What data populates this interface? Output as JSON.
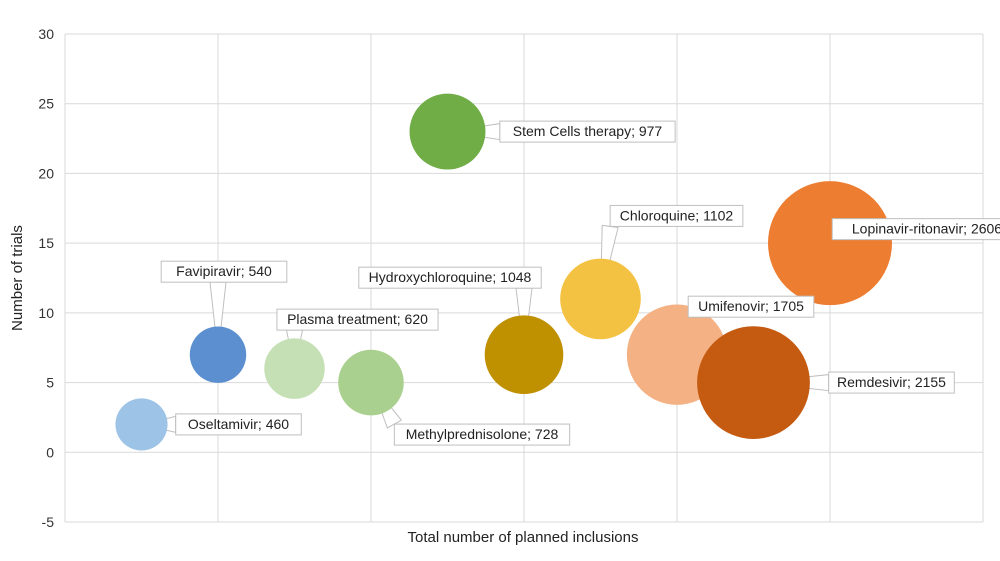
{
  "chart_data": {
    "type": "bubble",
    "xlabel": "Total number of planned inclusions",
    "ylabel": "Number of trials",
    "ylim": [
      -5,
      30
    ],
    "yticks": [
      -5,
      0,
      5,
      10,
      15,
      20,
      25,
      30
    ],
    "xlim": [
      0,
      6
    ],
    "grid": true,
    "points": [
      {
        "label": "Oseltamivir; 460",
        "x": 0.5,
        "y": 2,
        "size": 460,
        "color": "#9dc3e6"
      },
      {
        "label": "Favipiravir; 540",
        "x": 1.0,
        "y": 7,
        "size": 540,
        "color": "#5b8fcf"
      },
      {
        "label": "Plasma treatment; 620",
        "x": 1.5,
        "y": 6,
        "size": 620,
        "color": "#c5e0b4"
      },
      {
        "label": "Methylprednisolone; 728",
        "x": 2.0,
        "y": 5,
        "size": 728,
        "color": "#a9d08e"
      },
      {
        "label": "Stem Cells therapy; 977",
        "x": 2.5,
        "y": 23,
        "size": 977,
        "color": "#70ad47"
      },
      {
        "label": "Hydroxychloroquine; 1048",
        "x": 3.0,
        "y": 7,
        "size": 1048,
        "color": "#bf9000"
      },
      {
        "label": "Chloroquine; 1102",
        "x": 3.5,
        "y": 11,
        "size": 1102,
        "color": "#f4c242"
      },
      {
        "label": "Umifenovir; 1705",
        "x": 4.0,
        "y": 7,
        "size": 1705,
        "color": "#f4b183"
      },
      {
        "label": "Remdesivir; 2155",
        "x": 4.5,
        "y": 5,
        "size": 2155,
        "color": "#c55a11"
      },
      {
        "label": "Lopinavir-ritonavir; 2606",
        "x": 5.0,
        "y": 15,
        "size": 2606,
        "color": "#ed7d31"
      }
    ]
  }
}
